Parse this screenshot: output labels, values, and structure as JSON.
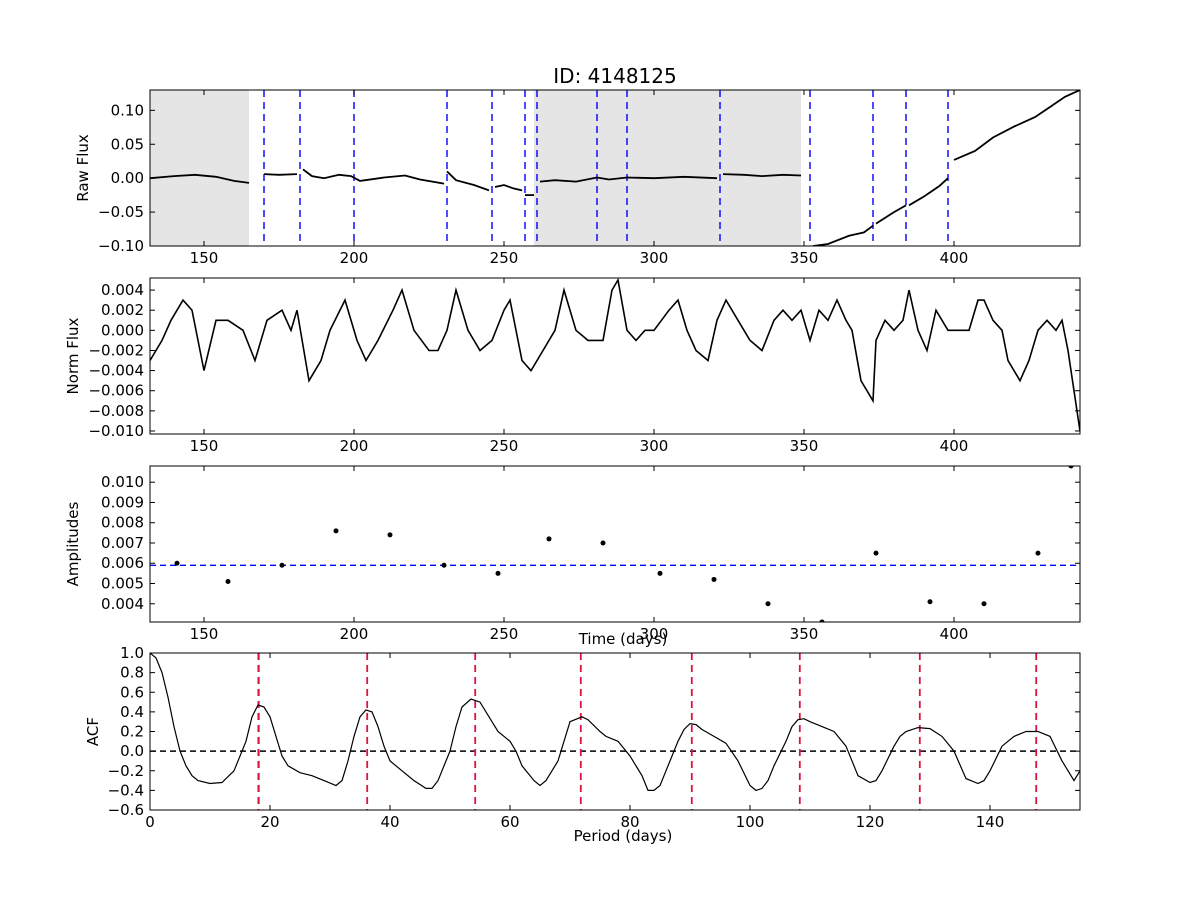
{
  "figure": {
    "title": "ID: 4148125"
  },
  "chart_data": [
    {
      "type": "line",
      "panel": "raw",
      "xlabel": "",
      "ylabel": "Raw Flux",
      "xlim": [
        132,
        442
      ],
      "ylim": [
        -0.1,
        0.13
      ],
      "xticks": [
        150,
        200,
        250,
        300,
        350,
        400
      ],
      "xtick_labels": [
        "150",
        "200",
        "250",
        "300",
        "350",
        "400"
      ],
      "yticks": [
        -0.1,
        -0.05,
        0.0,
        0.05,
        0.1
      ],
      "ytick_labels": [
        "−0.10",
        "−0.05",
        "0.00",
        "0.05",
        "0.10"
      ],
      "shaded_regions": [
        [
          132,
          165
        ],
        [
          260,
          349
        ]
      ],
      "shade_color": "#e5e5e5",
      "vlines": [
        170,
        182,
        200,
        231,
        246,
        257,
        261,
        281,
        291,
        322,
        352,
        373,
        384,
        398
      ],
      "vline_color": "#0000ff",
      "line_color": "#000000",
      "segments": [
        [
          [
            132,
            0.0
          ],
          [
            140,
            0.003
          ],
          [
            147,
            0.005
          ],
          [
            154,
            0.002
          ],
          [
            160,
            -0.004
          ],
          [
            165,
            -0.007
          ]
        ],
        [
          [
            170,
            0.006
          ],
          [
            175,
            0.005
          ],
          [
            181,
            0.006
          ]
        ],
        [
          [
            183,
            0.013
          ],
          [
            186,
            0.003
          ],
          [
            190,
            0.0
          ],
          [
            195,
            0.005
          ],
          [
            199,
            0.003
          ],
          [
            202,
            -0.004
          ],
          [
            210,
            0.001
          ],
          [
            217,
            0.004
          ],
          [
            222,
            -0.002
          ],
          [
            230,
            -0.008
          ]
        ],
        [
          [
            231,
            0.01
          ],
          [
            234,
            -0.003
          ],
          [
            240,
            -0.01
          ],
          [
            245,
            -0.018
          ]
        ],
        [
          [
            247,
            -0.013
          ],
          [
            250,
            -0.01
          ],
          [
            253,
            -0.015
          ],
          [
            256,
            -0.018
          ]
        ],
        [
          [
            257,
            -0.025
          ],
          [
            260,
            -0.025
          ]
        ],
        [
          [
            262,
            -0.005
          ],
          [
            267,
            -0.003
          ],
          [
            274,
            -0.005
          ],
          [
            281,
            0.001
          ],
          [
            285,
            -0.002
          ],
          [
            291,
            0.001
          ],
          [
            300,
            0.0
          ],
          [
            310,
            0.002
          ],
          [
            321,
            0.0
          ]
        ],
        [
          [
            323,
            0.006
          ],
          [
            330,
            0.005
          ],
          [
            336,
            0.003
          ],
          [
            343,
            0.005
          ],
          [
            349,
            0.004
          ]
        ],
        [
          [
            353,
            -0.1
          ],
          [
            358,
            -0.097
          ],
          [
            365,
            -0.085
          ],
          [
            370,
            -0.08
          ],
          [
            373,
            -0.07
          ]
        ],
        [
          [
            374,
            -0.067
          ],
          [
            380,
            -0.05
          ],
          [
            384,
            -0.04
          ]
        ],
        [
          [
            385,
            -0.04
          ],
          [
            390,
            -0.027
          ],
          [
            395,
            -0.012
          ],
          [
            398,
            0.0
          ]
        ],
        [
          [
            400,
            0.027
          ],
          [
            407,
            0.04
          ],
          [
            413,
            0.06
          ],
          [
            420,
            0.076
          ],
          [
            427,
            0.09
          ],
          [
            432,
            0.105
          ],
          [
            437,
            0.12
          ],
          [
            442,
            0.13
          ]
        ]
      ]
    },
    {
      "type": "line",
      "panel": "norm",
      "xlabel": "",
      "ylabel": "Norm Flux",
      "xlim": [
        132,
        442
      ],
      "ylim": [
        -0.0103,
        0.0052
      ],
      "xticks": [
        150,
        200,
        250,
        300,
        350,
        400
      ],
      "xtick_labels": [
        "150",
        "200",
        "250",
        "300",
        "350",
        "400"
      ],
      "yticks": [
        -0.01,
        -0.008,
        -0.006,
        -0.004,
        -0.002,
        0.0,
        0.002,
        0.004
      ],
      "ytick_labels": [
        "−0.010",
        "−0.008",
        "−0.006",
        "−0.004",
        "−0.002",
        "0.000",
        "0.002",
        "0.004"
      ],
      "line_color": "#000000",
      "points": [
        [
          132,
          -0.003
        ],
        [
          136,
          -0.001
        ],
        [
          139,
          0.001
        ],
        [
          143,
          0.003
        ],
        [
          146,
          0.002
        ],
        [
          150,
          -0.004
        ],
        [
          154,
          0.001
        ],
        [
          158,
          0.001
        ],
        [
          163,
          0.0
        ],
        [
          167,
          -0.003
        ],
        [
          171,
          0.001
        ],
        [
          176,
          0.002
        ],
        [
          179,
          0.0
        ],
        [
          181,
          0.002
        ],
        [
          185,
          -0.005
        ],
        [
          189,
          -0.003
        ],
        [
          192,
          0.0
        ],
        [
          197,
          0.003
        ],
        [
          201,
          -0.001
        ],
        [
          204,
          -0.003
        ],
        [
          208,
          -0.001
        ],
        [
          213,
          0.002
        ],
        [
          216,
          0.004
        ],
        [
          220,
          0.0
        ],
        [
          225,
          -0.002
        ],
        [
          228,
          -0.002
        ],
        [
          231,
          0.0
        ],
        [
          234,
          0.004
        ],
        [
          238,
          0.0
        ],
        [
          242,
          -0.002
        ],
        [
          246,
          -0.001
        ],
        [
          250,
          0.002
        ],
        [
          252,
          0.003
        ],
        [
          256,
          -0.003
        ],
        [
          259,
          -0.004
        ],
        [
          263,
          -0.002
        ],
        [
          267,
          0.0
        ],
        [
          270,
          0.004
        ],
        [
          274,
          0.0
        ],
        [
          278,
          -0.001
        ],
        [
          283,
          -0.001
        ],
        [
          286,
          0.004
        ],
        [
          288,
          0.005
        ],
        [
          291,
          0.0
        ],
        [
          294,
          -0.001
        ],
        [
          297,
          0.0
        ],
        [
          300,
          0.0
        ],
        [
          305,
          0.002
        ],
        [
          308,
          0.003
        ],
        [
          311,
          0.0
        ],
        [
          314,
          -0.002
        ],
        [
          318,
          -0.003
        ],
        [
          321,
          0.001
        ],
        [
          324,
          0.003
        ],
        [
          328,
          0.001
        ],
        [
          332,
          -0.001
        ],
        [
          336,
          -0.002
        ],
        [
          340,
          0.001
        ],
        [
          343,
          0.002
        ],
        [
          346,
          0.001
        ],
        [
          349,
          0.002
        ],
        [
          352,
          -0.001
        ],
        [
          355,
          0.002
        ],
        [
          358,
          0.001
        ],
        [
          361,
          0.003
        ],
        [
          364,
          0.001
        ],
        [
          366,
          0.0
        ],
        [
          369,
          -0.005
        ],
        [
          373,
          -0.007
        ],
        [
          374,
          -0.001
        ],
        [
          377,
          0.001
        ],
        [
          380,
          0.0
        ],
        [
          383,
          0.001
        ],
        [
          385,
          0.004
        ],
        [
          388,
          0.0
        ],
        [
          391,
          -0.002
        ],
        [
          394,
          0.002
        ],
        [
          398,
          0.0
        ],
        [
          401,
          0.0
        ],
        [
          405,
          0.0
        ],
        [
          408,
          0.003
        ],
        [
          410,
          0.003
        ],
        [
          413,
          0.001
        ],
        [
          416,
          0.0
        ],
        [
          418,
          -0.003
        ],
        [
          422,
          -0.005
        ],
        [
          425,
          -0.003
        ],
        [
          428,
          0.0
        ],
        [
          431,
          0.001
        ],
        [
          434,
          0.0
        ],
        [
          436,
          0.001
        ],
        [
          438,
          -0.002
        ],
        [
          440,
          -0.006
        ],
        [
          442,
          -0.01
        ]
      ]
    },
    {
      "type": "scatter",
      "panel": "amplitudes",
      "xlabel": "Time (days)",
      "ylabel": "Amplitudes",
      "xlim": [
        132,
        442
      ],
      "ylim": [
        0.0031,
        0.0108
      ],
      "xticks": [
        150,
        200,
        250,
        300,
        350,
        400
      ],
      "xtick_labels": [
        "150",
        "200",
        "250",
        "300",
        "350",
        "400"
      ],
      "yticks": [
        0.004,
        0.005,
        0.006,
        0.007,
        0.008,
        0.009,
        0.01
      ],
      "ytick_labels": [
        "0.004",
        "0.005",
        "0.006",
        "0.007",
        "0.008",
        "0.009",
        "0.010"
      ],
      "hline": 0.0059,
      "hline_color": "#0000ff",
      "point_color": "#000000",
      "x": [
        141,
        158,
        176,
        194,
        212,
        230,
        248,
        265,
        283,
        302,
        320,
        338,
        356,
        374,
        392,
        410,
        428,
        439
      ],
      "y": [
        0.006,
        0.0051,
        0.0059,
        0.0076,
        0.0074,
        0.0059,
        0.0055,
        0.0072,
        0.007,
        0.0055,
        0.0052,
        0.004,
        0.0031,
        0.0065,
        0.0041,
        0.004,
        0.0065,
        0.0108
      ]
    },
    {
      "type": "line",
      "panel": "acf",
      "xlabel": "Period (days)",
      "ylabel": "ACF",
      "xlim": [
        0,
        155
      ],
      "ylim": [
        -0.6,
        1.0
      ],
      "xticks": [
        0,
        20,
        40,
        60,
        80,
        100,
        120,
        140
      ],
      "xtick_labels": [
        "0",
        "20",
        "40",
        "60",
        "80",
        "100",
        "120",
        "140"
      ],
      "yticks": [
        -0.6,
        -0.4,
        -0.2,
        0.0,
        0.2,
        0.4,
        0.6,
        0.8,
        1.0
      ],
      "ytick_labels": [
        "−0.6",
        "−0.4",
        "−0.2",
        "0.0",
        "0.2",
        "0.4",
        "0.6",
        "0.8",
        "1.0"
      ],
      "hline": 0.0,
      "hline_color": "#000000",
      "period_line": 18.1,
      "period_line_color": "#000000",
      "peak_lines": [
        18.1,
        36.2,
        54.2,
        71.8,
        90.3,
        108.3,
        128.3,
        147.7
      ],
      "peak_line_color": "#dc143c",
      "line_color": "#000000",
      "points": [
        [
          0,
          1.0
        ],
        [
          1,
          0.95
        ],
        [
          2,
          0.8
        ],
        [
          3,
          0.55
        ],
        [
          4,
          0.25
        ],
        [
          5,
          0.0
        ],
        [
          6,
          -0.15
        ],
        [
          7,
          -0.25
        ],
        [
          8,
          -0.3
        ],
        [
          10,
          -0.33
        ],
        [
          12,
          -0.32
        ],
        [
          14,
          -0.2
        ],
        [
          16,
          0.1
        ],
        [
          17,
          0.35
        ],
        [
          18,
          0.47
        ],
        [
          19,
          0.45
        ],
        [
          20,
          0.35
        ],
        [
          21,
          0.15
        ],
        [
          22,
          -0.05
        ],
        [
          23,
          -0.15
        ],
        [
          25,
          -0.22
        ],
        [
          27,
          -0.25
        ],
        [
          29,
          -0.3
        ],
        [
          31,
          -0.35
        ],
        [
          32,
          -0.3
        ],
        [
          33,
          -0.1
        ],
        [
          34,
          0.15
        ],
        [
          35,
          0.35
        ],
        [
          36,
          0.42
        ],
        [
          37,
          0.4
        ],
        [
          38,
          0.25
        ],
        [
          39,
          0.05
        ],
        [
          40,
          -0.1
        ],
        [
          42,
          -0.2
        ],
        [
          44,
          -0.3
        ],
        [
          46,
          -0.38
        ],
        [
          47,
          -0.38
        ],
        [
          48,
          -0.3
        ],
        [
          50,
          0.0
        ],
        [
          51,
          0.25
        ],
        [
          52,
          0.45
        ],
        [
          53.5,
          0.53
        ],
        [
          55,
          0.5
        ],
        [
          56,
          0.4
        ],
        [
          57,
          0.3
        ],
        [
          58,
          0.2
        ],
        [
          60,
          0.1
        ],
        [
          61,
          0.0
        ],
        [
          62,
          -0.15
        ],
        [
          64,
          -0.3
        ],
        [
          65,
          -0.35
        ],
        [
          66,
          -0.3
        ],
        [
          68,
          -0.1
        ],
        [
          69,
          0.1
        ],
        [
          70,
          0.3
        ],
        [
          72,
          0.35
        ],
        [
          73,
          0.32
        ],
        [
          75,
          0.2
        ],
        [
          76,
          0.15
        ],
        [
          78,
          0.1
        ],
        [
          80,
          -0.05
        ],
        [
          82,
          -0.25
        ],
        [
          83,
          -0.4
        ],
        [
          84,
          -0.4
        ],
        [
          85,
          -0.35
        ],
        [
          86,
          -0.2
        ],
        [
          88,
          0.1
        ],
        [
          89,
          0.22
        ],
        [
          90,
          0.28
        ],
        [
          91,
          0.27
        ],
        [
          92,
          0.22
        ],
        [
          94,
          0.15
        ],
        [
          96,
          0.08
        ],
        [
          98,
          -0.1
        ],
        [
          100,
          -0.35
        ],
        [
          101,
          -0.4
        ],
        [
          102,
          -0.38
        ],
        [
          103,
          -0.3
        ],
        [
          104,
          -0.15
        ],
        [
          106,
          0.1
        ],
        [
          107,
          0.25
        ],
        [
          108,
          0.32
        ],
        [
          109,
          0.33
        ],
        [
          110,
          0.3
        ],
        [
          112,
          0.25
        ],
        [
          114,
          0.2
        ],
        [
          116,
          0.05
        ],
        [
          118,
          -0.25
        ],
        [
          120,
          -0.32
        ],
        [
          121,
          -0.3
        ],
        [
          122,
          -0.2
        ],
        [
          124,
          0.05
        ],
        [
          125,
          0.15
        ],
        [
          126,
          0.2
        ],
        [
          128,
          0.24
        ],
        [
          130,
          0.23
        ],
        [
          132,
          0.15
        ],
        [
          134,
          0.0
        ],
        [
          136,
          -0.28
        ],
        [
          138,
          -0.33
        ],
        [
          139,
          -0.3
        ],
        [
          140,
          -0.2
        ],
        [
          142,
          0.05
        ],
        [
          144,
          0.15
        ],
        [
          146,
          0.2
        ],
        [
          148,
          0.2
        ],
        [
          150,
          0.15
        ],
        [
          152,
          -0.1
        ],
        [
          154,
          -0.3
        ],
        [
          155,
          -0.2
        ]
      ]
    }
  ]
}
